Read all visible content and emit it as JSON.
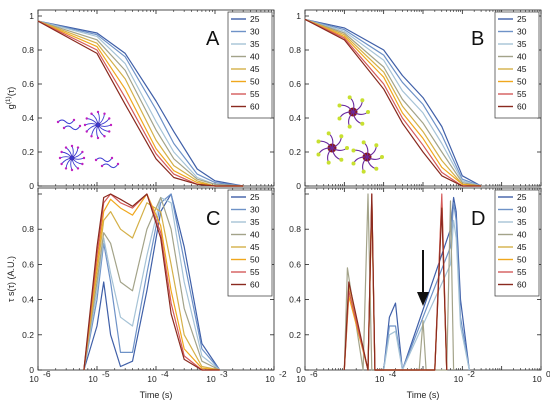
{
  "chart_data": [
    {
      "panel": "A",
      "type": "line",
      "ylabel": "g^(1)(τ)",
      "xlabel": "",
      "xscale": "log",
      "xlim": [
        1e-06,
        0.01
      ],
      "ylim": [
        0,
        1
      ],
      "yticks": [
        "0",
        "0.2",
        "0.4",
        "0.6",
        "0.8",
        "1"
      ],
      "xticks": [],
      "legend": {
        "position": "top-right",
        "entries": [
          "25",
          "30",
          "35",
          "40",
          "45",
          "50",
          "55",
          "60"
        ]
      },
      "series": [
        {
          "name": "25",
          "x": [
            1e-06,
            1e-05,
            3e-05,
            0.0001,
            0.0002,
            0.0005,
            0.001,
            0.003
          ],
          "y": [
            0.97,
            0.9,
            0.78,
            0.5,
            0.32,
            0.1,
            0.03,
            0.0
          ]
        },
        {
          "name": "30",
          "x": [
            1e-06,
            1e-05,
            3e-05,
            0.0001,
            0.0002,
            0.0005,
            0.001,
            0.003
          ],
          "y": [
            0.97,
            0.89,
            0.76,
            0.45,
            0.25,
            0.07,
            0.02,
            0.0
          ]
        },
        {
          "name": "35",
          "x": [
            1e-06,
            1e-05,
            3e-05,
            0.0001,
            0.0002,
            0.0005,
            0.001,
            0.003
          ],
          "y": [
            0.97,
            0.88,
            0.72,
            0.38,
            0.2,
            0.05,
            0.01,
            0.0
          ]
        },
        {
          "name": "40",
          "x": [
            1e-06,
            1e-05,
            3e-05,
            0.0001,
            0.0002,
            0.0005,
            0.001,
            0.003
          ],
          "y": [
            0.97,
            0.86,
            0.68,
            0.33,
            0.16,
            0.04,
            0.01,
            0.0
          ]
        },
        {
          "name": "45",
          "x": [
            1e-06,
            1e-05,
            3e-05,
            0.0001,
            0.0002,
            0.0005,
            0.001,
            0.003
          ],
          "y": [
            0.97,
            0.84,
            0.63,
            0.27,
            0.12,
            0.03,
            0.0,
            0.0
          ]
        },
        {
          "name": "50",
          "x": [
            1e-06,
            1e-05,
            3e-05,
            0.0001,
            0.0002,
            0.0005,
            0.001,
            0.003
          ],
          "y": [
            0.97,
            0.82,
            0.57,
            0.22,
            0.09,
            0.02,
            0.0,
            0.0
          ]
        },
        {
          "name": "55",
          "x": [
            1e-06,
            1e-05,
            3e-05,
            0.0001,
            0.0002,
            0.0005,
            0.001,
            0.003
          ],
          "y": [
            0.97,
            0.8,
            0.52,
            0.19,
            0.07,
            0.01,
            0.0,
            0.0
          ]
        },
        {
          "name": "60",
          "x": [
            1e-06,
            1e-05,
            3e-05,
            0.0001,
            0.0002,
            0.0005,
            0.001,
            0.003
          ],
          "y": [
            0.97,
            0.78,
            0.48,
            0.16,
            0.05,
            0.01,
            0.0,
            0.0
          ]
        }
      ]
    },
    {
      "panel": "B",
      "type": "line",
      "ylabel": "",
      "xlabel": "",
      "xscale": "log",
      "xlim": [
        1e-06,
        1
      ],
      "ylim": [
        0,
        1
      ],
      "legend": {
        "position": "top-right",
        "entries": [
          "25",
          "30",
          "35",
          "40",
          "45",
          "50",
          "55",
          "60"
        ]
      },
      "series": [
        {
          "name": "25",
          "x": [
            1e-06,
            1e-05,
            0.0001,
            0.0003,
            0.001,
            0.003,
            0.01,
            0.03
          ],
          "y": [
            0.98,
            0.93,
            0.8,
            0.65,
            0.52,
            0.35,
            0.06,
            0.0
          ]
        },
        {
          "name": "30",
          "x": [
            1e-06,
            1e-05,
            0.0001,
            0.0003,
            0.001,
            0.003,
            0.01,
            0.03
          ],
          "y": [
            0.98,
            0.92,
            0.77,
            0.61,
            0.48,
            0.3,
            0.04,
            0.0
          ]
        },
        {
          "name": "35",
          "x": [
            1e-06,
            1e-05,
            0.0001,
            0.0003,
            0.001,
            0.003,
            0.01,
            0.03
          ],
          "y": [
            0.98,
            0.91,
            0.74,
            0.56,
            0.43,
            0.25,
            0.03,
            0.0
          ]
        },
        {
          "name": "40",
          "x": [
            1e-06,
            1e-05,
            0.0001,
            0.0003,
            0.001,
            0.003,
            0.01,
            0.03
          ],
          "y": [
            0.98,
            0.9,
            0.7,
            0.51,
            0.37,
            0.2,
            0.02,
            0.0
          ]
        },
        {
          "name": "45",
          "x": [
            1e-06,
            1e-05,
            0.0001,
            0.0003,
            0.001,
            0.003,
            0.01,
            0.03
          ],
          "y": [
            0.98,
            0.89,
            0.67,
            0.47,
            0.32,
            0.15,
            0.01,
            0.0
          ]
        },
        {
          "name": "50",
          "x": [
            1e-06,
            1e-05,
            0.0001,
            0.0003,
            0.001,
            0.003,
            0.01,
            0.03
          ],
          "y": [
            0.98,
            0.88,
            0.64,
            0.43,
            0.28,
            0.11,
            0.01,
            0.0
          ]
        },
        {
          "name": "55",
          "x": [
            1e-06,
            1e-05,
            0.0001,
            0.0003,
            0.001,
            0.003,
            0.01,
            0.03
          ],
          "y": [
            0.98,
            0.87,
            0.6,
            0.4,
            0.24,
            0.08,
            0.0,
            0.0
          ]
        },
        {
          "name": "60",
          "x": [
            1e-06,
            1e-05,
            0.0001,
            0.0003,
            0.001,
            0.003,
            0.01,
            0.03
          ],
          "y": [
            0.98,
            0.86,
            0.57,
            0.37,
            0.2,
            0.06,
            0.0,
            0.0
          ]
        }
      ]
    },
    {
      "panel": "C",
      "type": "line",
      "ylabel": "τ s(τ) (A.U.)",
      "xlabel": "Time (s)",
      "xscale": "log",
      "xlim": [
        1e-06,
        0.01
      ],
      "ylim": [
        0,
        1
      ],
      "xticks": [
        "10^{-6}",
        "10^{-5}",
        "10^{-4}",
        "10^{-3}",
        "10^{-2}"
      ],
      "legend": {
        "position": "top-right",
        "entries": [
          "25",
          "30",
          "35",
          "40",
          "45",
          "50",
          "55",
          "60"
        ]
      },
      "series": [
        {
          "name": "25",
          "x": [
            6e-06,
            1e-05,
            1.3e-05,
            1.7e-05,
            2.5e-05,
            4e-05,
            7e-05,
            0.00012,
            0.00018,
            0.0003,
            0.0006,
            0.0012
          ],
          "y": [
            0.0,
            0.25,
            0.5,
            0.2,
            0.02,
            0.05,
            0.45,
            0.9,
            1.0,
            0.7,
            0.15,
            0.0
          ]
        },
        {
          "name": "30",
          "x": [
            6e-06,
            1e-05,
            1.3e-05,
            1.7e-05,
            2.5e-05,
            4e-05,
            7e-05,
            0.00012,
            0.00018,
            0.0003,
            0.0006,
            0.0012
          ],
          "y": [
            0.0,
            0.4,
            0.72,
            0.5,
            0.1,
            0.1,
            0.55,
            0.95,
            1.0,
            0.62,
            0.12,
            0.0
          ]
        },
        {
          "name": "35",
          "x": [
            6e-06,
            1e-05,
            1.3e-05,
            1.7e-05,
            2.5e-05,
            4e-05,
            7e-05,
            0.00012,
            0.00018,
            0.0003,
            0.0006,
            0.0012
          ],
          "y": [
            0.0,
            0.45,
            0.75,
            0.55,
            0.3,
            0.25,
            0.65,
            0.98,
            0.95,
            0.5,
            0.08,
            0.0
          ]
        },
        {
          "name": "40",
          "x": [
            6e-06,
            1e-05,
            1.3e-05,
            1.7e-05,
            2.5e-05,
            4e-05,
            7e-05,
            0.00012,
            0.00018,
            0.0003,
            0.0006,
            0.0012
          ],
          "y": [
            0.0,
            0.5,
            0.78,
            0.72,
            0.5,
            0.45,
            0.8,
            0.98,
            0.8,
            0.35,
            0.05,
            0.0
          ]
        },
        {
          "name": "45",
          "x": [
            6e-06,
            1e-05,
            1.3e-05,
            1.7e-05,
            2.5e-05,
            4e-05,
            7e-05,
            0.00012,
            0.00018,
            0.0003,
            0.0006,
            0.0012
          ],
          "y": [
            0.0,
            0.55,
            0.85,
            0.9,
            0.8,
            0.75,
            0.95,
            0.9,
            0.6,
            0.2,
            0.02,
            0.0
          ]
        },
        {
          "name": "50",
          "x": [
            6e-06,
            1e-05,
            1.3e-05,
            1.7e-05,
            2.5e-05,
            4e-05,
            7e-05,
            0.00012,
            0.00018,
            0.0003,
            0.0006,
            0.0012
          ],
          "y": [
            0.0,
            0.6,
            0.9,
            0.97,
            0.92,
            0.88,
            1.0,
            0.82,
            0.45,
            0.12,
            0.01,
            0.0
          ]
        },
        {
          "name": "55",
          "x": [
            6e-06,
            1e-05,
            1.3e-05,
            1.7e-05,
            2.5e-05,
            4e-05,
            7e-05,
            0.00012,
            0.00018,
            0.0003,
            0.0006,
            0.0012
          ],
          "y": [
            0.0,
            0.65,
            0.95,
            1.0,
            0.95,
            0.92,
            1.0,
            0.78,
            0.38,
            0.08,
            0.0,
            0.0
          ]
        },
        {
          "name": "60",
          "x": [
            6e-06,
            1e-05,
            1.3e-05,
            1.7e-05,
            2.5e-05,
            4e-05,
            7e-05,
            0.00012,
            0.00018,
            0.0003,
            0.0006,
            0.0012
          ],
          "y": [
            0.0,
            0.7,
            0.98,
            1.0,
            0.97,
            0.93,
            1.0,
            0.75,
            0.32,
            0.06,
            0.0,
            0.0
          ]
        }
      ]
    },
    {
      "panel": "D",
      "type": "line",
      "ylabel": "",
      "xlabel": "Time (s)",
      "xscale": "log",
      "xlim": [
        1e-06,
        1
      ],
      "ylim": [
        0,
        1
      ],
      "xticks": [
        "10^{-6}",
        "10^{-4}",
        "10^{-2}",
        "10^{0}"
      ],
      "legend": {
        "position": "top-right",
        "entries": [
          "25",
          "30",
          "35",
          "40",
          "45",
          "50",
          "55",
          "60"
        ]
      },
      "annotations": [
        "arrow pointing down near 10^{-3}"
      ],
      "series": [
        {
          "name": "25",
          "x": [
            5e-05,
            0.0001,
            0.00014,
            0.0002,
            0.0003,
            0.005,
            0.006,
            0.007,
            0.009,
            0.015
          ],
          "y": [
            0.0,
            0.0,
            0.3,
            0.38,
            0.0,
            0.8,
            0.98,
            0.9,
            0.4,
            0.0
          ]
        },
        {
          "name": "30",
          "x": [
            5e-05,
            0.0001,
            0.00014,
            0.0002,
            0.0003,
            0.005,
            0.006,
            0.007,
            0.009,
            0.015
          ],
          "y": [
            0.0,
            0.0,
            0.25,
            0.25,
            0.0,
            0.7,
            0.95,
            0.85,
            0.3,
            0.0
          ]
        },
        {
          "name": "35",
          "x": [
            5e-05,
            0.0001,
            0.00014,
            0.0002,
            0.0003,
            0.005,
            0.006,
            0.007,
            0.009,
            0.015
          ],
          "y": [
            0.0,
            0.0,
            0.2,
            0.22,
            0.0,
            0.6,
            0.85,
            0.75,
            0.25,
            0.0
          ]
        },
        {
          "name": "40",
          "x": [
            1e-05,
            1.2e-05,
            3e-05,
            4e-05,
            5e-05,
            0.0008,
            0.001,
            0.0012,
            0.004,
            0.005,
            0.006
          ],
          "y": [
            0.0,
            0.58,
            0.0,
            1.0,
            0.0,
            0.0,
            0.28,
            0.0,
            0.0,
            0.96,
            0.0
          ]
        },
        {
          "name": "45",
          "x": [
            1e-05,
            1.3e-05,
            4e-05,
            5e-05,
            6e-05,
            0.002,
            0.003,
            0.004
          ],
          "y": [
            0.0,
            0.48,
            0.0,
            0.98,
            0.0,
            0.0,
            0.98,
            0.0
          ]
        },
        {
          "name": "50",
          "x": [
            1e-05,
            1.3e-05,
            4e-05,
            5e-05,
            6e-05,
            0.002,
            0.003,
            0.004
          ],
          "y": [
            0.0,
            0.42,
            0.0,
            0.95,
            0.0,
            0.0,
            0.95,
            0.0
          ]
        },
        {
          "name": "55",
          "x": [
            1e-05,
            1.3e-05,
            4e-05,
            5e-05,
            6e-05,
            0.002,
            0.003,
            0.004
          ],
          "y": [
            0.0,
            0.45,
            0.0,
            1.0,
            0.0,
            0.0,
            1.0,
            0.0
          ]
        },
        {
          "name": "60",
          "x": [
            1e-05,
            1.3e-05,
            4e-05,
            5e-05,
            6e-05,
            0.002,
            0.003,
            0.004
          ],
          "y": [
            0.0,
            0.5,
            0.0,
            1.0,
            0.0,
            0.0,
            0.92,
            0.0
          ]
        }
      ]
    }
  ],
  "panel_letters": [
    "A",
    "B",
    "C",
    "D"
  ],
  "axis_labels": {
    "top_left_y": "g",
    "top_left_y_sup": "(1)",
    "top_left_y_arg": "(τ)",
    "bottom_left_y": "τ s(τ) (A.U.)",
    "bottom_x_left": "Time (s)",
    "bottom_x_right": "Time (s)"
  },
  "ytick_labels": [
    "0",
    "0.2",
    "0.4",
    "0.6",
    "0.8",
    "1"
  ],
  "xtick_labels_left": [
    "10",
    "10",
    "10",
    "10",
    "10"
  ],
  "xtick_exp_left": [
    "-6",
    "-5",
    "-4",
    "-3",
    "-2"
  ],
  "xtick_labels_right": [
    "10",
    "10",
    "10",
    "10"
  ],
  "xtick_exp_right": [
    "-6",
    "-4",
    "-2",
    "0"
  ],
  "legend_entries": [
    "25",
    "30",
    "35",
    "40",
    "45",
    "50",
    "55",
    "60"
  ],
  "series_colors": [
    "#3f5fa8",
    "#6e92c7",
    "#a6c3d6",
    "#a3a389",
    "#d4b048",
    "#f0a71d",
    "#d45a5a",
    "#8a2a1f"
  ]
}
